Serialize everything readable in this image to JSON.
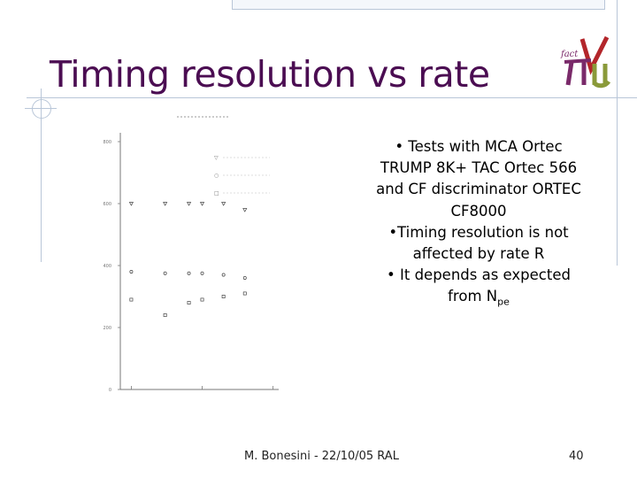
{
  "slide": {
    "title": "Timing resolution vs rate",
    "bullets": [
      {
        "text": "• Tests with MCA Ortec TRUMP 8K+ TAC Ortec 566 and CF discriminator ORTEC CF8000"
      },
      {
        "text": "•Timing resolution is not affected by rate R"
      },
      {
        "text": "• It depends as expected from N",
        "sub": "pe"
      }
    ],
    "footer": "M. Bonesini - 22/10/05 RAL",
    "page_number": "40",
    "logo_text": "fact",
    "colors": {
      "title": "#4b0d52",
      "frame": "#b9c6d8",
      "logo_purple": "#7a2a6a",
      "logo_green": "#8a9a3a",
      "logo_red": "#b3262b"
    }
  },
  "chart_data": {
    "type": "scatter",
    "title": "",
    "xlabel": "",
    "ylabel": "",
    "x_scale": "log",
    "xlim": [
      7,
      1200
    ],
    "ylim": [
      0,
      800
    ],
    "y_ticks": [
      "0",
      "200",
      "400",
      "600",
      "800"
    ],
    "legend": "upper-right",
    "series": [
      {
        "marker": "triangle-down",
        "points": [
          [
            10,
            600
          ],
          [
            30,
            600
          ],
          [
            65,
            600
          ],
          [
            100,
            600
          ],
          [
            200,
            600
          ],
          [
            400,
            580
          ]
        ]
      },
      {
        "marker": "circle",
        "points": [
          [
            10,
            380
          ],
          [
            30,
            375
          ],
          [
            65,
            375
          ],
          [
            100,
            375
          ],
          [
            200,
            370
          ],
          [
            400,
            360
          ]
        ]
      },
      {
        "marker": "square",
        "points": [
          [
            10,
            290
          ],
          [
            30,
            240
          ],
          [
            65,
            280
          ],
          [
            100,
            290
          ],
          [
            200,
            300
          ],
          [
            400,
            310
          ]
        ]
      }
    ]
  }
}
